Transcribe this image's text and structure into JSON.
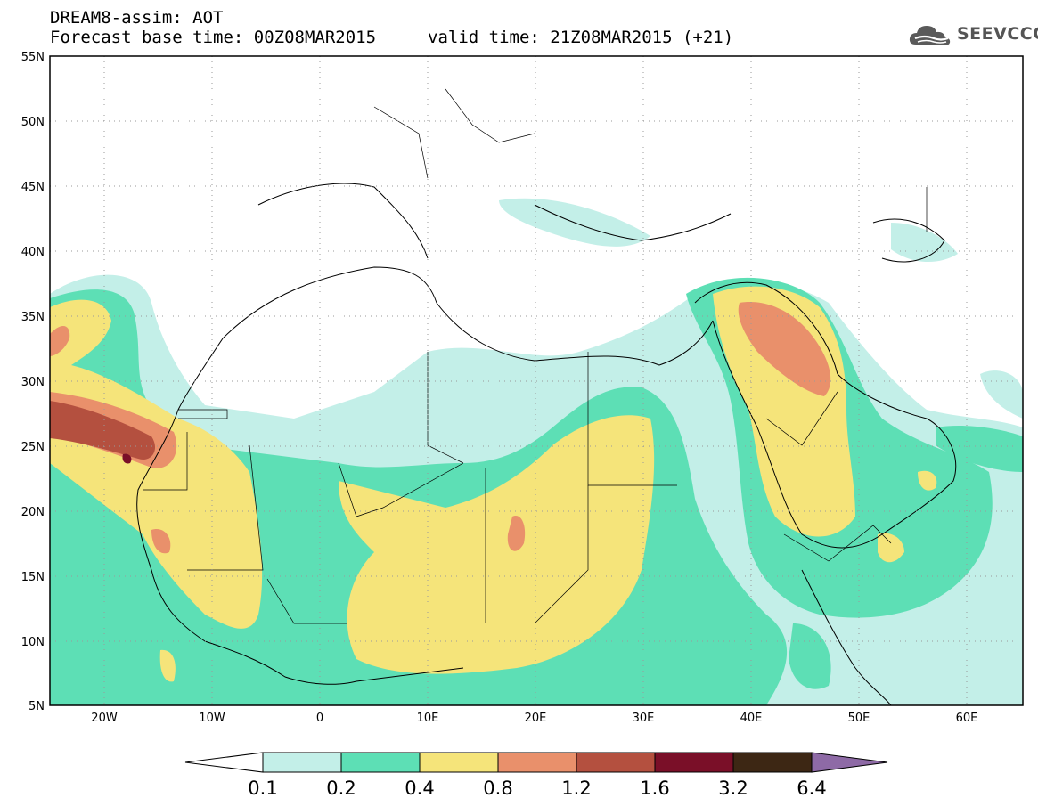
{
  "header": {
    "title": "DREAM8-assim: AOT",
    "base_time": "Forecast base time: 00Z08MAR2015",
    "valid_time": "valid time: 21Z08MAR2015 (+21)"
  },
  "logo": {
    "text": "SEEVCCC",
    "icon": "cloud-logo-icon"
  },
  "map": {
    "lon_range": [
      -25,
      65
    ],
    "lat_range": [
      5,
      55
    ],
    "lat_labels": [
      "55N",
      "50N",
      "45N",
      "40N",
      "35N",
      "30N",
      "25N",
      "20N",
      "15N",
      "10N",
      "5N"
    ],
    "lon_labels": [
      "20W",
      "10W",
      "0",
      "10E",
      "20E",
      "30E",
      "40E",
      "50E",
      "60E"
    ],
    "grid": "dotted"
  },
  "colorbar": {
    "labels": [
      "0.1",
      "0.2",
      "0.4",
      "0.8",
      "1.2",
      "1.6",
      "3.2",
      "6.4"
    ],
    "colors": [
      "#c3efe8",
      "#5ddfb5",
      "#f5e47a",
      "#e9906b",
      "#b4503f",
      "#7a0f28",
      "#3d2714"
    ],
    "under_color": "#ffffff",
    "over_color": "#8e6aa6"
  },
  "aot_colors": {
    "c01": "#c3efe8",
    "c02": "#5ddfb5",
    "c04": "#f5e47a",
    "c08": "#e9906b",
    "c12": "#b4503f",
    "c16": "#7a0f28"
  }
}
